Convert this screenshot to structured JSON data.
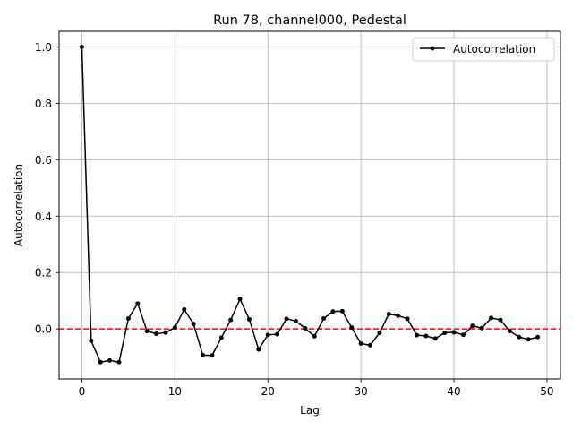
{
  "chart_data": {
    "type": "line",
    "title": "Run 78, channel000, Pedestal",
    "xlabel": "Lag",
    "ylabel": "Autocorrelation",
    "xlim": [
      -2.45,
      51.45
    ],
    "ylim": [
      -0.1775,
      1.0555
    ],
    "xticks": [
      0,
      10,
      20,
      30,
      40,
      50
    ],
    "xtick_labels": [
      "0",
      "10",
      "20",
      "30",
      "40",
      "50"
    ],
    "yticks": [
      0.0,
      0.2,
      0.4,
      0.6,
      0.8,
      1.0
    ],
    "ytick_labels": [
      "0.0",
      "0.2",
      "0.4",
      "0.6",
      "0.8",
      "1.0"
    ],
    "grid": true,
    "legend_position": "top-right",
    "reference_line": {
      "y": 0,
      "color": "#ff0000",
      "style": "dashed"
    },
    "series": [
      {
        "name": "Autocorrelation",
        "color": "#000000",
        "marker": "circle",
        "x": [
          0,
          1,
          2,
          3,
          4,
          5,
          6,
          7,
          8,
          9,
          10,
          11,
          12,
          13,
          14,
          15,
          16,
          17,
          18,
          19,
          20,
          21,
          22,
          23,
          24,
          25,
          26,
          27,
          28,
          29,
          30,
          31,
          32,
          33,
          34,
          35,
          36,
          37,
          38,
          39,
          40,
          41,
          42,
          43,
          44,
          45,
          46,
          47,
          48,
          49
        ],
        "values": [
          1.0,
          -0.042,
          -0.118,
          -0.112,
          -0.118,
          0.037,
          0.09,
          -0.008,
          -0.017,
          -0.013,
          0.005,
          0.069,
          0.018,
          -0.093,
          -0.094,
          -0.031,
          0.032,
          0.106,
          0.034,
          -0.073,
          -0.021,
          -0.019,
          0.036,
          0.028,
          0.002,
          -0.026,
          0.037,
          0.062,
          0.063,
          0.005,
          -0.052,
          -0.058,
          -0.014,
          0.053,
          0.047,
          0.036,
          -0.022,
          -0.025,
          -0.034,
          -0.014,
          -0.012,
          -0.021,
          0.011,
          0.003,
          0.039,
          0.032,
          -0.008,
          -0.029,
          -0.037,
          -0.029
        ]
      }
    ]
  }
}
